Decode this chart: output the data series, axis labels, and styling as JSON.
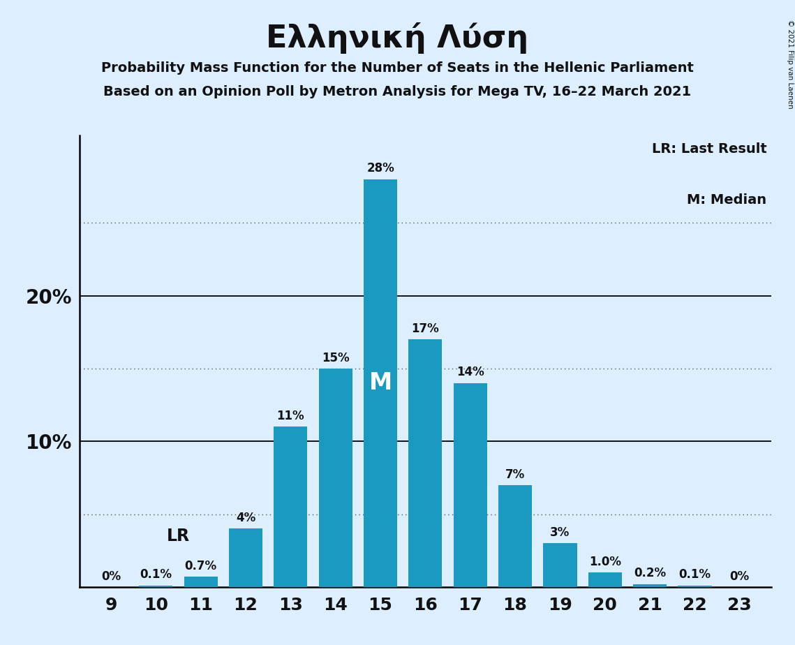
{
  "title": "Ελληνική Λύση",
  "subtitle1": "Probability Mass Function for the Number of Seats in the Hellenic Parliament",
  "subtitle2": "Based on an Opinion Poll by Metron Analysis for Mega TV, 16–22 March 2021",
  "copyright": "© 2021 Filip van Laenen",
  "categories": [
    9,
    10,
    11,
    12,
    13,
    14,
    15,
    16,
    17,
    18,
    19,
    20,
    21,
    22,
    23
  ],
  "values": [
    0.0,
    0.1,
    0.7,
    4.0,
    11.0,
    15.0,
    28.0,
    17.0,
    14.0,
    7.0,
    3.0,
    1.0,
    0.2,
    0.1,
    0.0
  ],
  "bar_color": "#1a9ac0",
  "background_color": "#ddeeff",
  "text_color": "#111111",
  "median_seat": 15,
  "lr_seat": 11,
  "ymax": 31,
  "dotted_lines": [
    5,
    15,
    25
  ],
  "solid_lines": [
    10,
    20
  ],
  "bar_labels": [
    "0%",
    "0.1%",
    "0.7%",
    "4%",
    "11%",
    "15%",
    "28%",
    "17%",
    "14%",
    "7%",
    "3%",
    "1.0%",
    "0.2%",
    "0.1%",
    "0%"
  ]
}
